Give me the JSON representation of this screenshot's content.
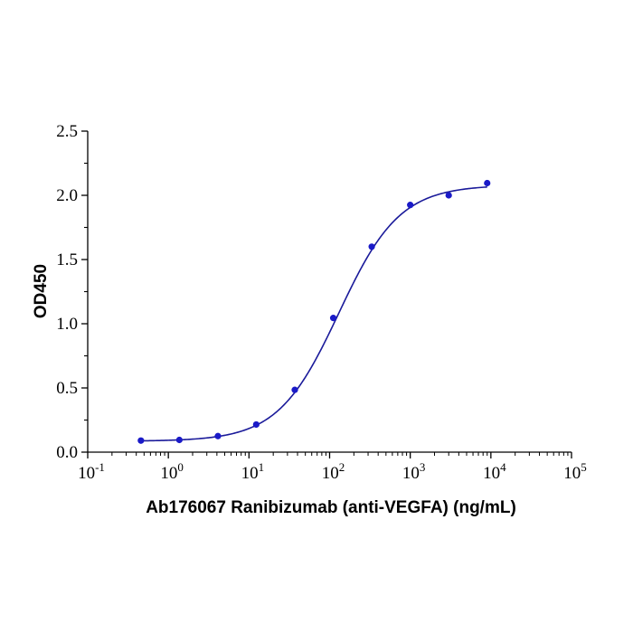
{
  "chart_data": {
    "type": "scatter",
    "title": "",
    "xlabel": "Ab176067 Ranibizumab (anti-VEGFA) (ng/mL)",
    "ylabel": "OD450",
    "x_scale": "log10",
    "xlim": [
      0.1,
      100000
    ],
    "ylim": [
      0,
      2.5
    ],
    "x_ticks": [
      {
        "base": "10",
        "exp": "-1",
        "value": 0.1
      },
      {
        "base": "10",
        "exp": "0",
        "value": 1
      },
      {
        "base": "10",
        "exp": "1",
        "value": 10
      },
      {
        "base": "10",
        "exp": "2",
        "value": 100
      },
      {
        "base": "10",
        "exp": "3",
        "value": 1000
      },
      {
        "base": "10",
        "exp": "4",
        "value": 10000
      },
      {
        "base": "10",
        "exp": "5",
        "value": 100000
      }
    ],
    "y_ticks": [
      {
        "label": "0.0",
        "value": 0.0
      },
      {
        "label": "0.5",
        "value": 0.5
      },
      {
        "label": "1.0",
        "value": 1.0
      },
      {
        "label": "1.5",
        "value": 1.5
      },
      {
        "label": "2.0",
        "value": 2.0
      },
      {
        "label": "2.5",
        "value": 2.5
      }
    ],
    "grid": false,
    "legend": "none",
    "color": "#1a1ac8",
    "points": [
      {
        "x": 0.457,
        "y": 0.09
      },
      {
        "x": 1.37,
        "y": 0.095
      },
      {
        "x": 4.12,
        "y": 0.125
      },
      {
        "x": 12.3,
        "y": 0.215
      },
      {
        "x": 37.0,
        "y": 0.485
      },
      {
        "x": 111,
        "y": 1.045
      },
      {
        "x": 333,
        "y": 1.6
      },
      {
        "x": 1000,
        "y": 1.925
      },
      {
        "x": 3000,
        "y": 2.0
      },
      {
        "x": 9000,
        "y": 2.095
      }
    ],
    "fit": {
      "model": "4PL",
      "bottom": 0.085,
      "top": 2.08,
      "ec50": 130,
      "hill": 1.15,
      "x_range": [
        0.457,
        9000
      ]
    }
  }
}
